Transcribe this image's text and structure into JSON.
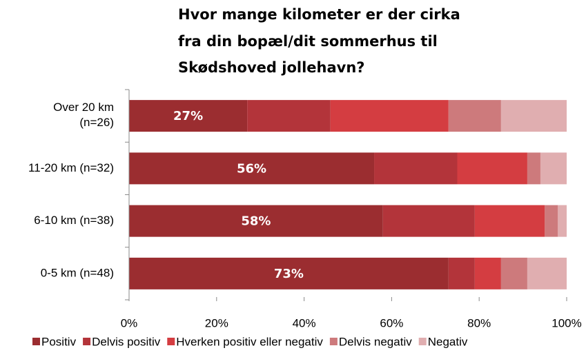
{
  "chart_data": {
    "type": "stacked_bar_horizontal",
    "title": [
      "Hvor mange kilometer er der cirka",
      "fra din bopæl/dit sommerhus til",
      "Skødshoved jollehavn?"
    ],
    "categories": [
      "Over 20 km\n(n=26)",
      "11-20 km (n=32)",
      "6-10 km (n=38)",
      "0-5 km (n=48)"
    ],
    "series": [
      {
        "name": "Positiv",
        "color": "#9b2d30",
        "values": [
          27,
          56,
          58,
          73
        ],
        "value_labels": [
          "27%",
          "56%",
          "58%",
          "73%"
        ]
      },
      {
        "name": "Delvis positiv",
        "color": "#b3343a",
        "values": [
          19,
          19,
          21,
          6
        ]
      },
      {
        "name": "Hverken positiv eller negativ",
        "color": "#d43d41",
        "values": [
          27,
          16,
          16,
          6
        ]
      },
      {
        "name": "Delvis negativ",
        "color": "#cd7a7c",
        "values": [
          12,
          3,
          3,
          6
        ]
      },
      {
        "name": "Negativ",
        "color": "#e0aeb0",
        "values": [
          15,
          6,
          2,
          9
        ]
      }
    ],
    "xlim": [
      0,
      100
    ],
    "xticks": [
      {
        "value": 0,
        "label": "0%"
      },
      {
        "value": 20,
        "label": "20%"
      },
      {
        "value": 40,
        "label": "40%"
      },
      {
        "value": 60,
        "label": "60%"
      },
      {
        "value": 80,
        "label": "80%"
      },
      {
        "value": 100,
        "label": "100%"
      }
    ],
    "legend": "bottom"
  }
}
